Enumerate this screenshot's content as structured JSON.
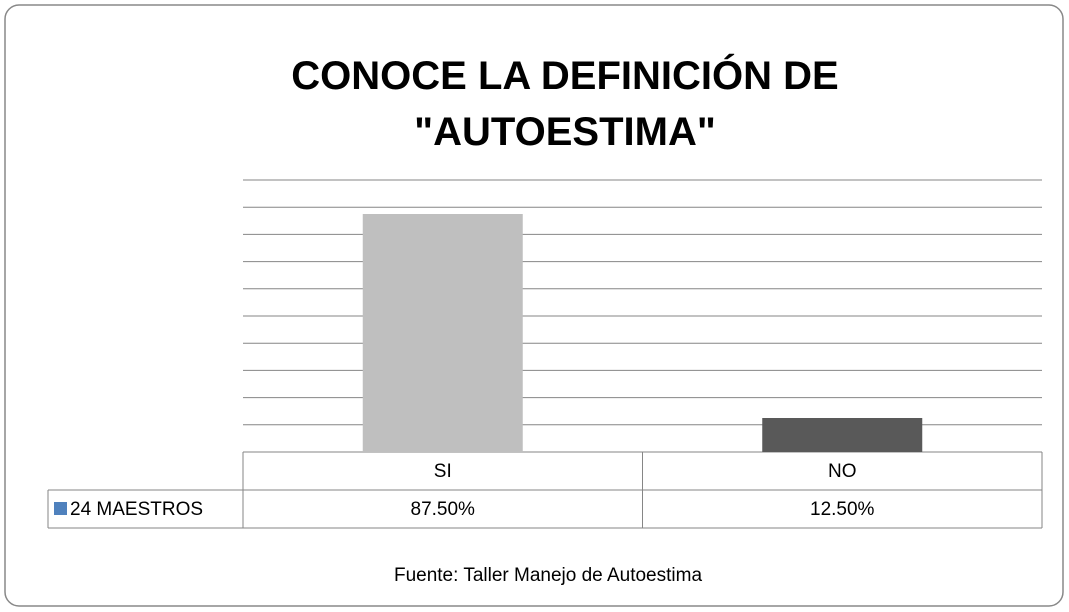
{
  "chart_data": {
    "type": "bar",
    "title": "CONOCE LA DEFINICIÓN DE \"AUTOESTIMA\"",
    "categories": [
      "SI",
      "NO"
    ],
    "series": [
      {
        "name": "24 MAESTROS",
        "color": "#4f81bd",
        "values": [
          87.5,
          12.5
        ],
        "value_labels": [
          "87.50%",
          "12.50%"
        ]
      }
    ],
    "bar_colors": [
      "#bfbfbf",
      "#595959"
    ],
    "ylim": [
      0,
      100
    ],
    "yticks": [
      0,
      10,
      20,
      30,
      40,
      50,
      60,
      70,
      80,
      90,
      100
    ],
    "grid": true,
    "source": "Fuente: Taller Manejo de Autoestima"
  }
}
